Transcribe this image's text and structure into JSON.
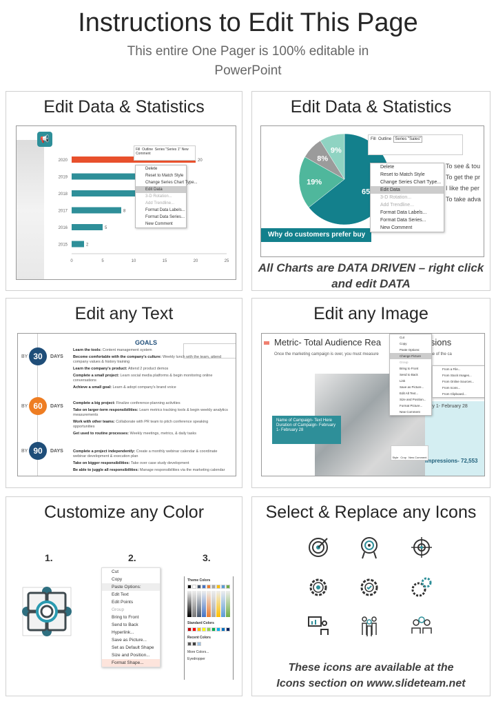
{
  "header": {
    "title": "Instructions to Edit This Page",
    "subtitle_line1": "This entire One Pager is 100% editable in",
    "subtitle_line2": "PowerPoint"
  },
  "panels": {
    "p1": {
      "heading": "Edit Data & Statistics"
    },
    "p2": {
      "heading": "Edit Data & Statistics",
      "caption_line1": "All Charts are DATA DRIVEN – right click",
      "caption_line2": "and edit DATA"
    },
    "p3": {
      "heading": "Edit any Text"
    },
    "p4": {
      "heading": "Edit any Image"
    },
    "p5": {
      "heading": "Customize any Color",
      "steps": [
        "1.",
        "2.",
        "3."
      ]
    },
    "p6": {
      "heading": "Select & Replace any Icons",
      "caption_line1": "These icons are available at the",
      "caption_line2": "Icons section on www.slideteam.net"
    }
  },
  "chart_data": {
    "type": "bar",
    "orientation": "horizontal",
    "categories": [
      "2015",
      "2016",
      "2017",
      "2018",
      "2019",
      "2020"
    ],
    "values": [
      2,
      5,
      8,
      15,
      15,
      20
    ],
    "xlim": [
      0,
      25
    ],
    "xticks": [
      "0",
      "5",
      "10",
      "15",
      "20",
      "25"
    ],
    "data_labels": {
      "2015": "2",
      "2016": "5",
      "2017": "8",
      "2020": "20"
    },
    "colors": {
      "default": "#2e8f99",
      "highlight": "#e8502c"
    }
  },
  "chart_menu": [
    "Delete",
    "Reset to Match Style",
    "Change Series Chart Type...",
    "Edit Data",
    "3-D Rotation...",
    "Add Trendline...",
    "Format Data Labels...",
    "Format Data Series...",
    "New Comment"
  ],
  "chart_toolbar": {
    "fill": "Fill",
    "outline": "Outline",
    "series": "Series \"Series 1\"",
    "comment": "New Comment"
  },
  "pie_chart": {
    "type": "pie",
    "slices": [
      {
        "label": "65%",
        "value": 65,
        "color": "#13808c"
      },
      {
        "label": "19%",
        "value": 19,
        "color": "#4fb79c"
      },
      {
        "label": "8%",
        "value": 8,
        "color": "#9b9b9b"
      },
      {
        "label": "9%",
        "value": 9,
        "color": "#8fd3c2"
      }
    ],
    "series": "Series \"Sales\"",
    "banner": "Why do customers prefer buy",
    "legend": [
      "To see & tou",
      "To get the pr",
      "I like the per",
      "To take adva"
    ]
  },
  "text_slide": {
    "title": "GOALS",
    "by": "BY",
    "days": "DAYS",
    "stages": [
      {
        "num": "30",
        "color": "#1f4e79",
        "items": [
          [
            "Learn the tools:",
            "Content management system"
          ],
          [
            "Become comfortable with the company's culture:",
            "Weekly lunch with the team, attend company values & history training"
          ],
          [
            "Learn the company's product:",
            "Attend 2 product demos"
          ],
          [
            "Complete a small project:",
            "Learn social media platforms & begin monitoring online conversations"
          ],
          [
            "Achieve a small goal:",
            "Learn & adopt company's brand voice"
          ]
        ]
      },
      {
        "num": "60",
        "color": "#ee7d22",
        "items": [
          [
            "Complete a big project:",
            "Finalize conference-planning activities"
          ],
          [
            "Take on larger-term responsibilities:",
            "Learn metrics tracking tools & begin weekly analytics measurements"
          ],
          [
            "Work with other teams:",
            "Collaborate with PR team to pitch conference speaking opportunities"
          ],
          [
            "Get used to routine processes:",
            "Weekly meetings, metrics, & daily tasks"
          ]
        ]
      },
      {
        "num": "90",
        "color": "#1f4e79",
        "items": [
          [
            "Complete a project independently:",
            "Create a monthly webinar calendar & coordinate webinar development & execution plan"
          ],
          [
            "Take on bigger responsibilities:",
            "Take over case study development"
          ],
          [
            "Be able to juggle all responsibilities:",
            "Manage responsibilities via the marketing calendar"
          ]
        ]
      }
    ]
  },
  "image_slide": {
    "title": "Metric- Total Audience Rea",
    "title_end": "essions",
    "intro": "Once the marketing campaign is over, you must measure",
    "intro_end": "over the course of the ca",
    "callout": [
      "Name of Campaign- Text Here",
      "Duration of Campaign- February 1- February 28"
    ],
    "date": "ruary 1- February 28",
    "impressions": "Impressions- 72,553",
    "menu": [
      "Cut",
      "Copy",
      "Paste Options:",
      "Change Picture",
      "Group",
      "Bring to Front",
      "Send to Back",
      "Link",
      "Save as Picture...",
      "Edit Alt Text...",
      "Size and Position...",
      "Format Picture...",
      "New Comment"
    ],
    "submenu": [
      "From a File...",
      "From Stock Images...",
      "From Online Sources...",
      "From Icons...",
      "From Clipboard..."
    ],
    "mini": [
      "Style",
      "Crop",
      "New Comment"
    ]
  },
  "shape_menu": [
    "Cut",
    "Copy",
    "Paste Options:",
    "Edit Text",
    "Edit Points",
    "Group",
    "Bring to Front",
    "Send to Back",
    "Hyperlink...",
    "Save as Picture...",
    "Set as Default Shape",
    "Size and Position...",
    "Format Shape..."
  ],
  "color_picker": {
    "theme": "Theme Colors",
    "standard": "Standard Colors",
    "recent": "Recent Colors",
    "more": "More Colors...",
    "eyedropper": "Eyedropper",
    "theme_colors": [
      "#000000",
      "#ffffff",
      "#44546a",
      "#4472c4",
      "#ed7d31",
      "#a5a5a5",
      "#ffc000",
      "#5b9bd5",
      "#70ad47"
    ],
    "standard_colors": [
      "#c00000",
      "#ff0000",
      "#ffc000",
      "#ffff00",
      "#92d050",
      "#00b050",
      "#00b0f0",
      "#0070c0",
      "#002060",
      "#7030a0"
    ],
    "recent_colors": [
      "#595959",
      "#404040",
      "#9dc3e6"
    ]
  },
  "icons": [
    "target-arrow-icon",
    "target-stand-icon",
    "crosshair-icon",
    "gear-target-icon",
    "gear-check-icon",
    "gears-icon",
    "presentation-icon",
    "team-icon",
    "group-discussion-icon"
  ]
}
